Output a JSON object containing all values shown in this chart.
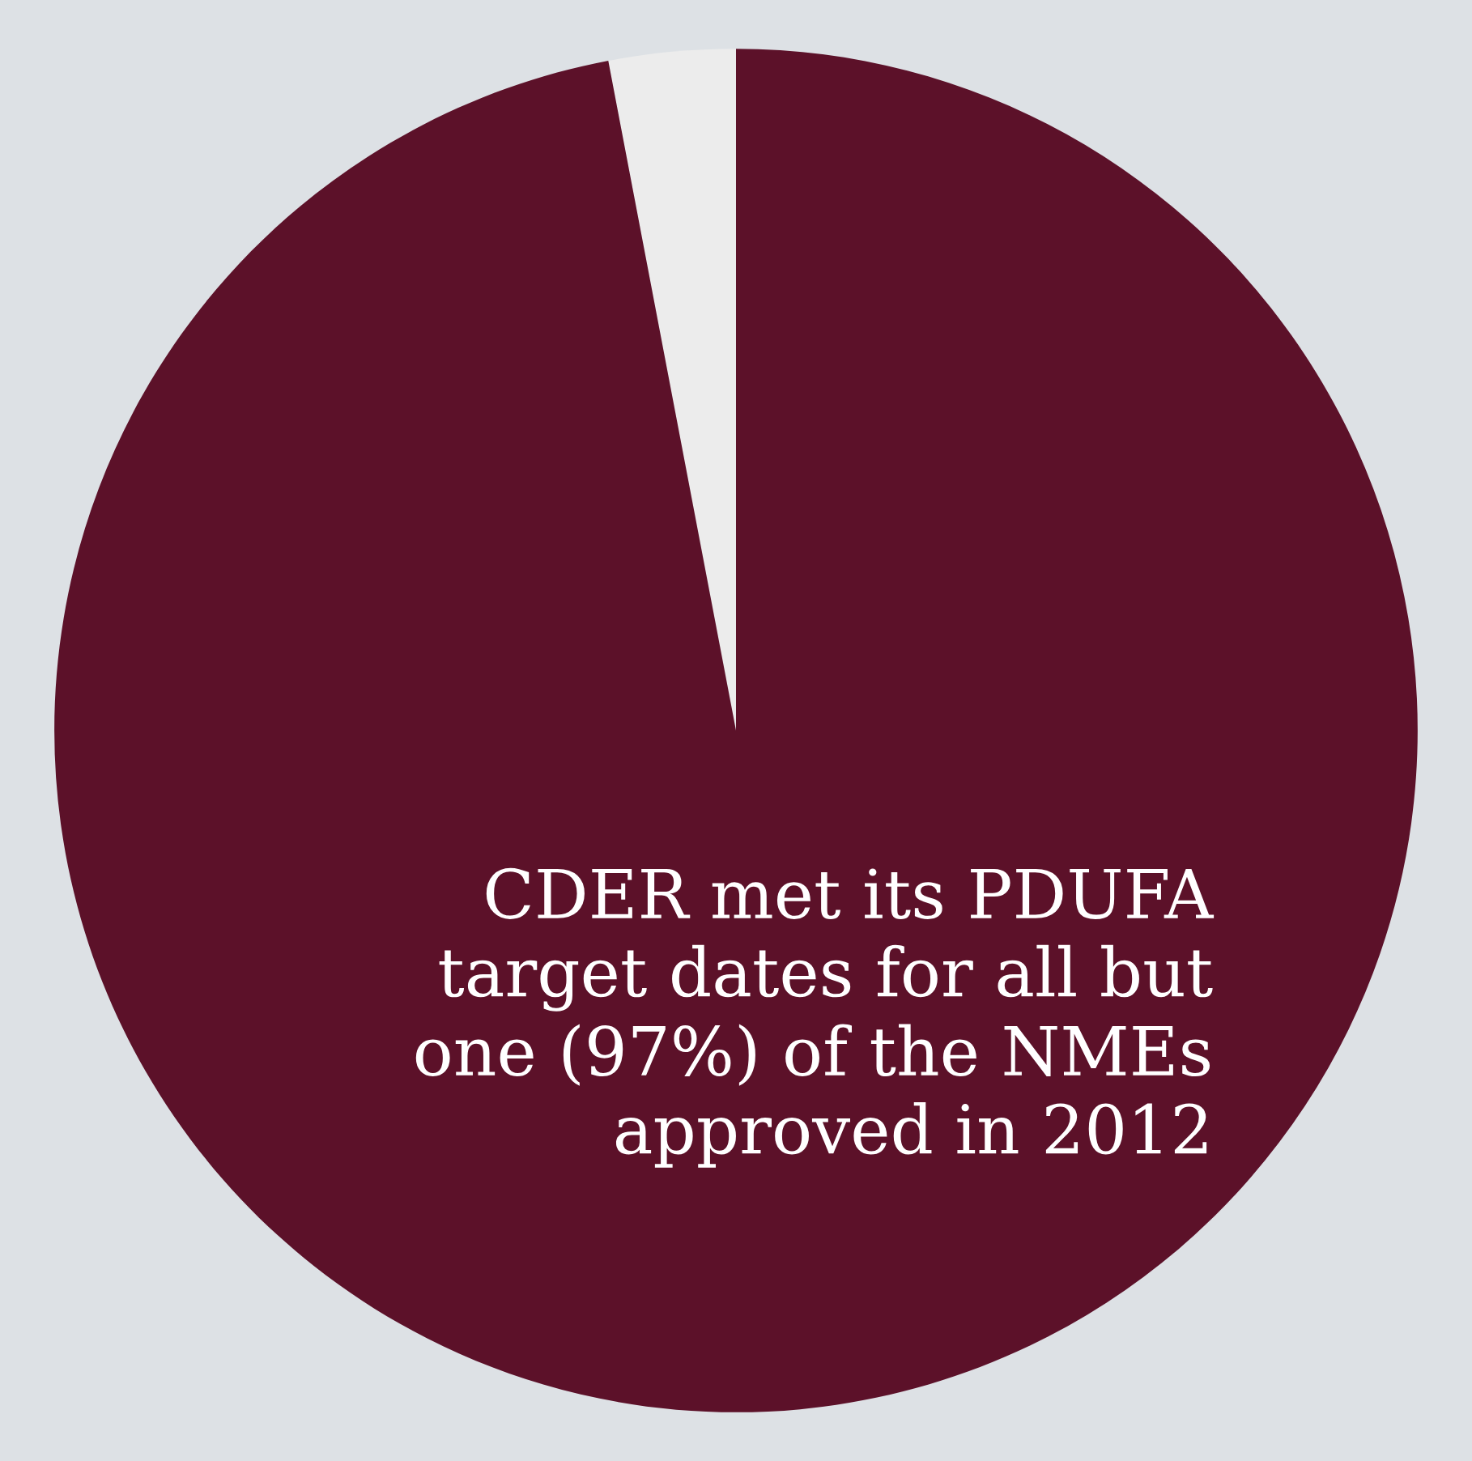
{
  "chart_data": {
    "type": "pie",
    "categories": [
      null,
      null
    ],
    "values": [
      3,
      97
    ],
    "colors": [
      "#ececec",
      "#5c1129"
    ],
    "annotations": [
      "CDER met its PDUFA\ntarget dates for all but\none (97%) of the NMEs\napproved in 2012"
    ]
  }
}
